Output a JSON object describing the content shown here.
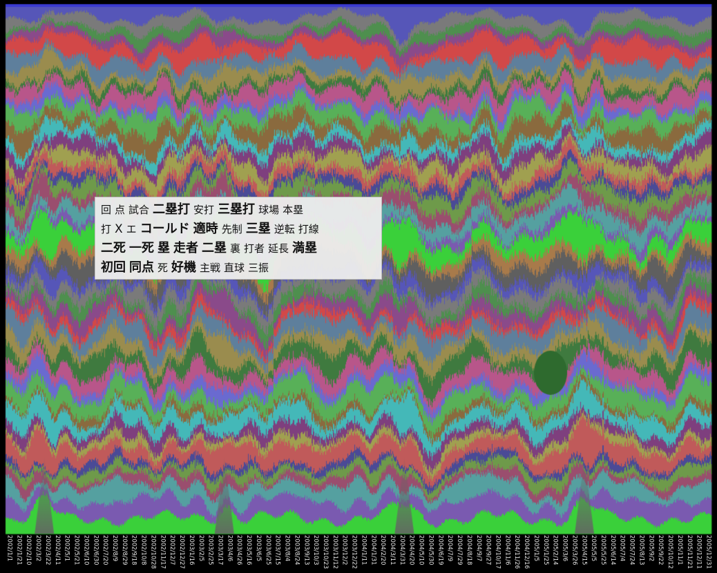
{
  "chart_data": {
    "type": "area",
    "stacked": true,
    "legend": "overlay box center-left",
    "x_tick_labels": [
      "2002/1/1",
      "2002/1/21",
      "2002/2/10",
      "2002/3/2",
      "2002/3/22",
      "2002/4/11",
      "2002/5/1",
      "2002/5/21",
      "2002/6/10",
      "2002/6/30",
      "2002/7/20",
      "2002/8/9",
      "2002/8/29",
      "2002/9/18",
      "2002/10/8",
      "2002/10/28",
      "2002/11/17",
      "2002/12/7",
      "2002/12/27",
      "2003/1/16",
      "2003/2/5",
      "2003/2/25",
      "2003/3/17",
      "2003/4/6",
      "2003/4/26",
      "2003/5/16",
      "2003/6/5",
      "2003/6/25",
      "2003/7/15",
      "2003/8/4",
      "2003/8/24",
      "2003/9/13",
      "2003/10/3",
      "2003/10/23",
      "2003/11/12",
      "2003/12/2",
      "2003/12/22",
      "2004/1/11",
      "2004/1/31",
      "2004/2/20",
      "2004/3/11",
      "2004/3/31",
      "2004/4/20",
      "2004/5/10",
      "2004/5/30",
      "2004/6/19",
      "2004/7/9",
      "2004/7/29",
      "2004/8/18",
      "2004/9/7",
      "2004/9/27",
      "2004/10/17",
      "2004/11/6",
      "2004/11/26",
      "2004/12/16",
      "2005/1/5",
      "2005/1/25",
      "2005/2/14",
      "2005/3/6",
      "2005/3/26",
      "2005/4/15",
      "2005/5/5",
      "2005/5/25",
      "2005/6/14",
      "2005/7/4",
      "2005/7/24",
      "2005/8/13",
      "2005/9/2",
      "2005/9/22",
      "2005/10/12",
      "2005/11/1",
      "2005/11/21",
      "2005/12/11",
      "2005/12/31"
    ],
    "keywords": [
      [
        {
          "text": "回",
          "weight": 1
        },
        {
          "text": "点",
          "weight": 1
        },
        {
          "text": "試合",
          "weight": 1
        },
        {
          "text": "二塁打",
          "weight": 3
        },
        {
          "text": "安打",
          "weight": 1
        },
        {
          "text": "三塁打",
          "weight": 3
        },
        {
          "text": "球場",
          "weight": 1
        },
        {
          "text": "本塁",
          "weight": 1
        }
      ],
      [
        {
          "text": "打",
          "weight": 1
        },
        {
          "text": "X",
          "weight": 2
        },
        {
          "text": "エ",
          "weight": 1
        },
        {
          "text": "コールド",
          "weight": 3
        },
        {
          "text": "適時",
          "weight": 3
        },
        {
          "text": "先制",
          "weight": 1
        },
        {
          "text": "三塁",
          "weight": 3
        },
        {
          "text": "逆転",
          "weight": 1
        },
        {
          "text": "打線",
          "weight": 1
        }
      ],
      [
        {
          "text": "二死",
          "weight": 3
        },
        {
          "text": "一死",
          "weight": 3
        },
        {
          "text": "塁",
          "weight": 3
        },
        {
          "text": "走者",
          "weight": 3
        },
        {
          "text": "二塁",
          "weight": 3
        },
        {
          "text": "裏",
          "weight": 1
        },
        {
          "text": "打者",
          "weight": 1
        },
        {
          "text": "延長",
          "weight": 1
        },
        {
          "text": "満塁",
          "weight": 3
        }
      ],
      [
        {
          "text": "初回",
          "weight": 3
        },
        {
          "text": "同点",
          "weight": 3
        },
        {
          "text": "死",
          "weight": 1
        },
        {
          "text": "好機",
          "weight": 3
        },
        {
          "text": "主戦",
          "weight": 1
        },
        {
          "text": "直球",
          "weight": 1
        },
        {
          "text": "三振",
          "weight": 1
        }
      ]
    ],
    "palette": [
      "#5656b8",
      "#7a7a7a",
      "#4e8f4e",
      "#8a4a8a",
      "#d24848",
      "#5e7f9c",
      "#9a8c4e",
      "#3f7a3f",
      "#b8568a",
      "#6a6ad0",
      "#58b058",
      "#8a6a3e",
      "#44b8b8",
      "#7e3f7e",
      "#a0a050",
      "#c05a5a",
      "#4a4a96",
      "#6e9a4a",
      "#9a4e6e",
      "#55a0a0",
      "#7a5ab0",
      "#3ad03a",
      "#a87a4a",
      "#5f5f5f"
    ],
    "num_series": 46,
    "stream_base_color": "#3a3ad0"
  }
}
